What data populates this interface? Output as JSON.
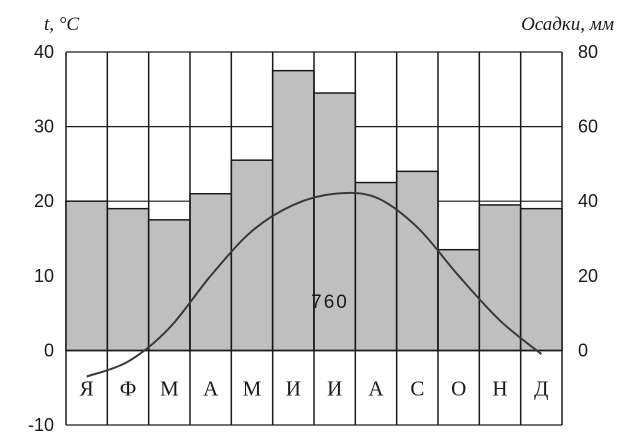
{
  "chart_data": {
    "type": "bar+line",
    "title": "",
    "categories": [
      "Я",
      "Ф",
      "М",
      "А",
      "М",
      "И",
      "И",
      "А",
      "С",
      "О",
      "Н",
      "Д"
    ],
    "y_left": {
      "label": "t, °C",
      "ylim": [
        -10,
        40
      ],
      "ticks": [
        40,
        30,
        20,
        10,
        0,
        -10
      ]
    },
    "y_right": {
      "label": "Осадки, мм",
      "ylim": [
        -20,
        80
      ],
      "ticks": [
        80,
        60,
        40,
        20,
        0
      ]
    },
    "series": [
      {
        "name": "",
        "kind": "bar",
        "axis": "right",
        "color": "#bfbfbf",
        "values": [
          40,
          38,
          35,
          42,
          51,
          75,
          69,
          45,
          48,
          27,
          39,
          38
        ]
      },
      {
        "name": "",
        "kind": "line",
        "axis": "left",
        "color": "#3a3a3a",
        "values": [
          -3.5,
          -1.5,
          3,
          10,
          16,
          19.5,
          21,
          20.5,
          16.5,
          10,
          4,
          -0.5
        ]
      }
    ],
    "annotation": "760",
    "grid": true
  }
}
